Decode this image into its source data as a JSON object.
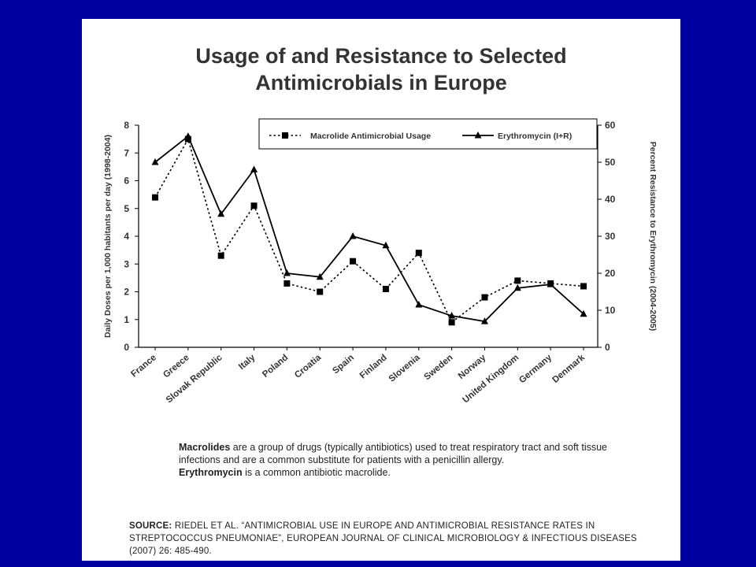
{
  "slide": {
    "title_line1": "Usage of and Resistance to Selected",
    "title_line2": "Antimicrobials in Europe",
    "note": {
      "term1": "Macrolides",
      "text1": " are a group of drugs (typically antibiotics) used to treat respiratory tract and soft tissue infections and are a common substitute for patients with a penicillin allergy.",
      "term2": "Erythromycin",
      "text2": " is a common antibiotic macrolide."
    },
    "source": {
      "label": "SOURCE:",
      "text": " RIEDEL ET AL. “ANTIMICROBIAL USE IN EUROPE AND ANTIMICROBIAL RESISTANCE RATES IN STREPTOCOCCUS PNEUMONIAE”, EUROPEAN JOURNAL OF CLINICAL MICROBIOLOGY & INFECTIOUS DISEASES (2007) 26: 485-490."
    }
  },
  "chart_data": {
    "type": "line",
    "categories": [
      "France",
      "Greece",
      "Slovak Republic",
      "Italy",
      "Poland",
      "Croatia",
      "Spain",
      "Finland",
      "Slovenia",
      "Sweden",
      "Norway",
      "United Kingdom",
      "Germany",
      "Denmark"
    ],
    "series": [
      {
        "name": "Macrolide Antimicrobial Usage",
        "axis": "left",
        "marker": "square",
        "line_style": "dotted",
        "color": "#000000",
        "values": [
          5.4,
          7.5,
          3.3,
          5.1,
          2.3,
          2.0,
          3.1,
          2.1,
          3.4,
          0.9,
          1.8,
          2.4,
          2.3,
          2.2
        ]
      },
      {
        "name": "Erythromycin (I+R)",
        "axis": "right",
        "marker": "triangle",
        "line_style": "solid",
        "color": "#000000",
        "values": [
          50,
          57,
          36,
          48,
          20,
          19,
          30,
          27.5,
          11.5,
          8.5,
          7,
          16,
          17,
          9
        ]
      }
    ],
    "ylabel_left": "Daily Doses per 1,000 habitants per day (1998-2004)",
    "ylabel_right": "Percent Resistance to Erythromycin (2004-2005)",
    "ylim_left": [
      0,
      8
    ],
    "ylim_right": [
      0,
      60
    ],
    "yticks_left": [
      "0",
      "1",
      "2",
      "3",
      "4",
      "5",
      "6",
      "7",
      "8"
    ],
    "yticks_right": [
      "0",
      "10",
      "20",
      "30",
      "40",
      "50",
      "60"
    ],
    "legend_position": "top",
    "grid": false
  }
}
